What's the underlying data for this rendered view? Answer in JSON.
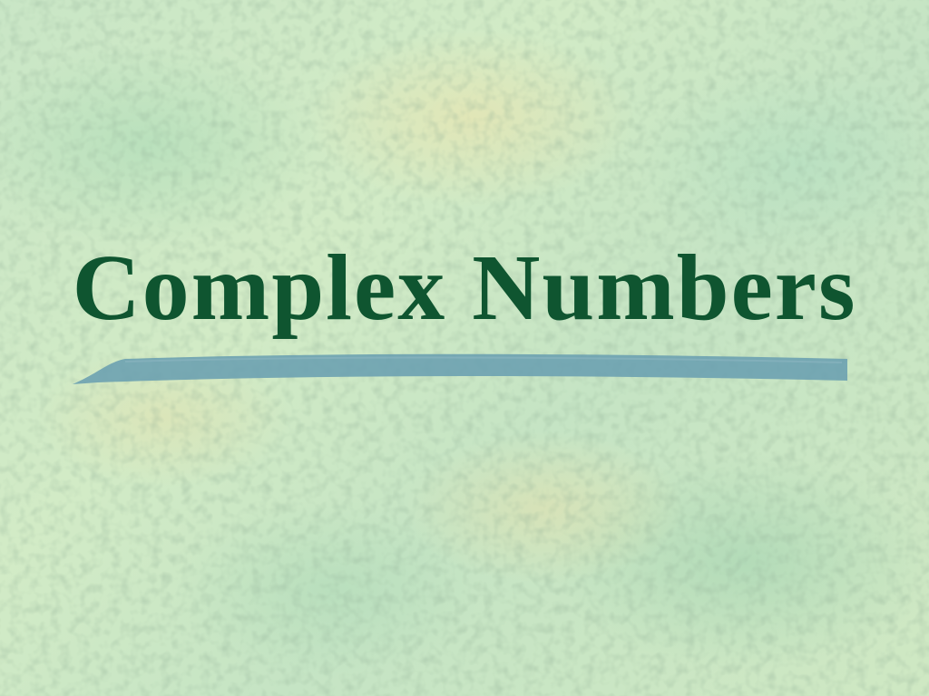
{
  "slide": {
    "title": "Complex Numbers"
  },
  "colors": {
    "title": "#0f5530",
    "underline_stroke": "#6a9fb0",
    "background": "#cbe7c4"
  },
  "decorations": {
    "underline": "brush-stroke",
    "background": "parchment-texture"
  }
}
